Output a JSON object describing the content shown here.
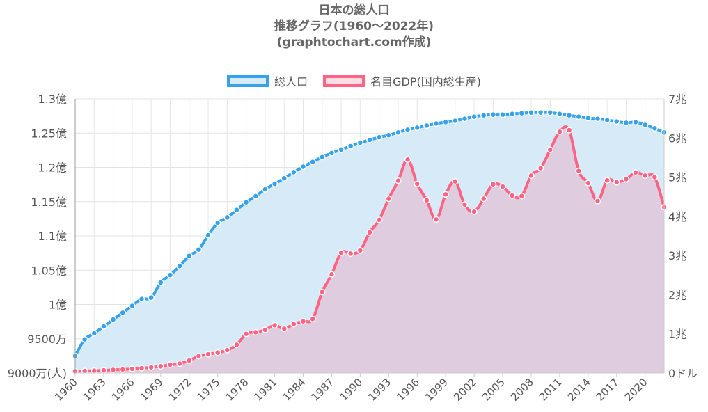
{
  "title_lines": [
    "日本の総人口",
    "推移グラフ(1960～2022年)",
    "(graphtochart.com作成)"
  ],
  "legend": [
    {
      "label": "総人口",
      "color": "#36a2eb",
      "fill": "#d6eaf8"
    },
    {
      "label": "名目GDP(国内総生産)",
      "color": "#ff6384",
      "fill": "#ffdde5"
    }
  ],
  "chart_data": {
    "type": "area",
    "title": "日本の総人口 推移グラフ(1960～2022年) (graphtochart.com作成)",
    "x": [
      1960,
      1961,
      1962,
      1963,
      1964,
      1965,
      1966,
      1967,
      1968,
      1969,
      1970,
      1971,
      1972,
      1973,
      1974,
      1975,
      1976,
      1977,
      1978,
      1979,
      1980,
      1981,
      1982,
      1983,
      1984,
      1985,
      1986,
      1987,
      1988,
      1989,
      1990,
      1991,
      1992,
      1993,
      1994,
      1995,
      1996,
      1997,
      1998,
      1999,
      2000,
      2001,
      2002,
      2003,
      2004,
      2005,
      2006,
      2007,
      2008,
      2009,
      2010,
      2011,
      2012,
      2013,
      2014,
      2015,
      2016,
      2017,
      2018,
      2019,
      2020,
      2021,
      2022
    ],
    "x_tick_labels": [
      "1960",
      "1963",
      "1966",
      "1969",
      "1972",
      "1975",
      "1978",
      "1981",
      "1984",
      "1987",
      "1990",
      "1993",
      "1996",
      "1999",
      "2002",
      "2005",
      "2008",
      "2011",
      "2014",
      "2017",
      "2020"
    ],
    "y_left": {
      "min": 90000000,
      "max": 130000000,
      "tick_values": [
        90000000,
        95000000,
        100000000,
        105000000,
        110000000,
        115000000,
        120000000,
        125000000,
        130000000
      ],
      "tick_labels": [
        "9000万(人)",
        "9500万",
        "1億",
        "1.05億",
        "1.1億",
        "1.15億",
        "1.2億",
        "1.25億",
        "1.3億"
      ]
    },
    "y_right": {
      "min": 0,
      "max": 7000000000000,
      "tick_values": [
        0,
        1000000000000,
        2000000000000,
        3000000000000,
        4000000000000,
        5000000000000,
        6000000000000,
        7000000000000
      ],
      "tick_labels": [
        "0ドル",
        "1兆",
        "2兆",
        "3兆",
        "4兆",
        "5兆",
        "6兆",
        "7兆"
      ]
    },
    "grid": true,
    "legend_position": "top",
    "series": [
      {
        "name": "総人口",
        "axis": "left",
        "color": "#36a2eb",
        "fill": "#d6eaf8",
        "values": [
          92500000,
          94900000,
          95800000,
          96800000,
          97800000,
          98800000,
          99800000,
          100800000,
          101000000,
          103200000,
          104300000,
          105600000,
          107100000,
          108000000,
          110100000,
          111900000,
          112700000,
          113800000,
          114900000,
          115800000,
          116800000,
          117600000,
          118400000,
          119300000,
          120100000,
          120800000,
          121500000,
          122100000,
          122600000,
          123100000,
          123600000,
          124000000,
          124400000,
          124700000,
          125100000,
          125500000,
          125800000,
          126100000,
          126400000,
          126600000,
          126800000,
          127100000,
          127400000,
          127600000,
          127700000,
          127700000,
          127800000,
          127900000,
          128000000,
          128000000,
          128000000,
          127800000,
          127600000,
          127400000,
          127200000,
          127100000,
          126900000,
          126700000,
          126500000,
          126600000,
          126200000,
          125700000,
          125100000
        ]
      },
      {
        "name": "名目GDP(国内総生産)",
        "axis": "right",
        "color": "#ff6384",
        "fill": "rgba(255,99,132,0.2)",
        "values": [
          44000000000,
          53000000000,
          61000000000,
          70000000000,
          82000000000,
          91000000000,
          106000000000,
          124000000000,
          147000000000,
          172000000000,
          213000000000,
          240000000000,
          318000000000,
          432000000000,
          480000000000,
          521000000000,
          586000000000,
          722000000000,
          1000000000000,
          1040000000000,
          1100000000000,
          1220000000000,
          1130000000000,
          1250000000000,
          1320000000000,
          1380000000000,
          2070000000000,
          2520000000000,
          3070000000000,
          3050000000000,
          3130000000000,
          3590000000000,
          3910000000000,
          4450000000000,
          4910000000000,
          5450000000000,
          4830000000000,
          4410000000000,
          3920000000000,
          4560000000000,
          4890000000000,
          4300000000000,
          4120000000000,
          4450000000000,
          4820000000000,
          4760000000000,
          4530000000000,
          4520000000000,
          5040000000000,
          5230000000000,
          5700000000000,
          6160000000000,
          6200000000000,
          5160000000000,
          4850000000000,
          4390000000000,
          4920000000000,
          4870000000000,
          4950000000000,
          5120000000000,
          5040000000000,
          5000000000000,
          4230000000000
        ]
      }
    ]
  }
}
